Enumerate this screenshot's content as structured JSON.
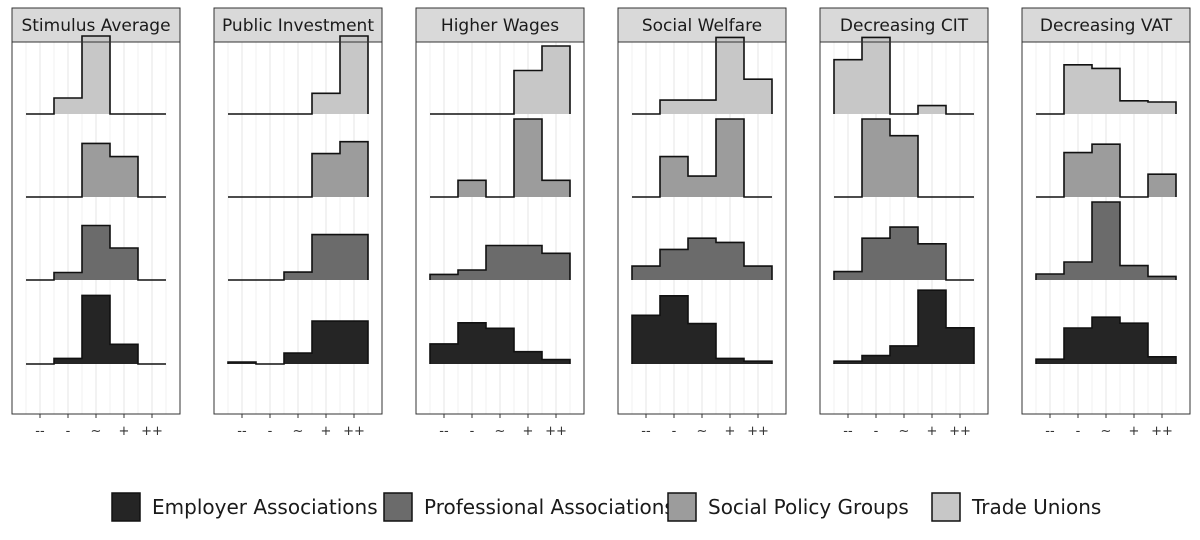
{
  "colors": {
    "Employer Associations": "#252525",
    "Professional Associations": "#6b6b6b",
    "Social Policy Groups": "#9c9c9c",
    "Trade Unions": "#c7c7c7",
    "strip_fill": "#d9d9d9",
    "grid": "#e6e6e6"
  },
  "legend": {
    "position": "bottom",
    "items": [
      "Employer Associations",
      "Professional Associations",
      "Social Policy Groups",
      "Trade Unions"
    ]
  },
  "chart_data": [
    {
      "type": "histogram-ridgeline",
      "title": "Stimulus Average",
      "categories": [
        "--",
        "-",
        "~",
        "+",
        "++"
      ],
      "series": [
        {
          "name": "Trade Unions",
          "values": [
            0,
            0.17,
            0.83,
            0,
            0
          ]
        },
        {
          "name": "Social Policy Groups",
          "values": [
            0,
            0,
            0.57,
            0.43,
            0
          ]
        },
        {
          "name": "Professional Associations",
          "values": [
            0,
            0.08,
            0.58,
            0.34,
            0
          ]
        },
        {
          "name": "Employer Associations",
          "values": [
            0,
            0.06,
            0.73,
            0.21,
            0
          ]
        }
      ]
    },
    {
      "type": "histogram-ridgeline",
      "title": "Public Investment",
      "categories": [
        "--",
        "-",
        "~",
        "+",
        "++"
      ],
      "series": [
        {
          "name": "Trade Unions",
          "values": [
            0,
            0,
            0,
            0.21,
            0.79
          ]
        },
        {
          "name": "Social Policy Groups",
          "values": [
            0,
            0,
            0,
            0.44,
            0.56
          ]
        },
        {
          "name": "Professional Associations",
          "values": [
            0,
            0,
            0.08,
            0.46,
            0.46
          ]
        },
        {
          "name": "Employer Associations",
          "values": [
            0.02,
            0,
            0.11,
            0.435,
            0.435
          ]
        }
      ]
    },
    {
      "type": "histogram-ridgeline",
      "title": "Higher Wages",
      "categories": [
        "--",
        "-",
        "~",
        "+",
        "++"
      ],
      "series": [
        {
          "name": "Trade Unions",
          "values": [
            0,
            0,
            0,
            0.39,
            0.61
          ]
        },
        {
          "name": "Social Policy Groups",
          "values": [
            0,
            0.15,
            0,
            0.7,
            0.15
          ]
        },
        {
          "name": "Professional Associations",
          "values": [
            0.05,
            0.09,
            0.31,
            0.31,
            0.24
          ]
        },
        {
          "name": "Employer Associations",
          "values": [
            0.18,
            0.37,
            0.32,
            0.11,
            0.04
          ]
        }
      ]
    },
    {
      "type": "histogram-ridgeline",
      "title": "Social Welfare",
      "categories": [
        "--",
        "-",
        "~",
        "+",
        "++"
      ],
      "series": [
        {
          "name": "Trade Unions",
          "values": [
            0,
            0.1,
            0.1,
            0.55,
            0.25
          ]
        },
        {
          "name": "Social Policy Groups",
          "values": [
            0,
            0.29,
            0.15,
            0.56,
            0
          ]
        },
        {
          "name": "Professional Associations",
          "values": [
            0.1,
            0.22,
            0.3,
            0.27,
            0.1
          ]
        },
        {
          "name": "Employer Associations",
          "values": [
            0.35,
            0.49,
            0.29,
            0.04,
            0.02
          ]
        }
      ]
    },
    {
      "type": "histogram-ridgeline",
      "title": "Decreasing CIT",
      "categories": [
        "--",
        "-",
        "~",
        "+",
        "++"
      ],
      "series": [
        {
          "name": "Trade Unions",
          "values": [
            0.39,
            0.55,
            0,
            0.06,
            0
          ]
        },
        {
          "name": "Social Policy Groups",
          "values": [
            0,
            0.56,
            0.44,
            0,
            0
          ]
        },
        {
          "name": "Professional Associations",
          "values": [
            0.06,
            0.3,
            0.38,
            0.26,
            0
          ]
        },
        {
          "name": "Employer Associations",
          "values": [
            0.02,
            0.06,
            0.13,
            0.53,
            0.26
          ]
        }
      ]
    },
    {
      "type": "histogram-ridgeline",
      "title": "Decreasing VAT",
      "categories": [
        "--",
        "-",
        "~",
        "+",
        "++"
      ],
      "series": [
        {
          "name": "Trade Unions",
          "values": [
            0,
            0.41,
            0.38,
            0.11,
            0.1
          ]
        },
        {
          "name": "Social Policy Groups",
          "values": [
            0,
            0.37,
            0.44,
            0,
            0.19
          ]
        },
        {
          "name": "Professional Associations",
          "values": [
            0.05,
            0.15,
            0.65,
            0.12,
            0.03
          ]
        },
        {
          "name": "Employer Associations",
          "values": [
            0.04,
            0.3,
            0.39,
            0.34,
            0.06
          ]
        }
      ]
    }
  ]
}
